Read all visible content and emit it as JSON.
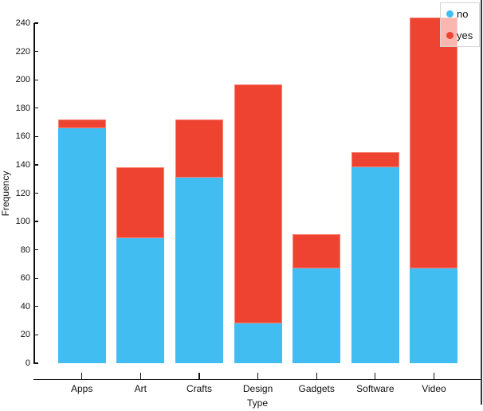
{
  "figure": {
    "background": "#ffffff",
    "text_color": "#111111",
    "window_right_border_color": "#3a3a3a"
  },
  "chart_data": {
    "type": "bar",
    "stacked": true,
    "title": "",
    "xlabel": "Type",
    "ylabel": "Frequency",
    "categories": [
      "Apps",
      "Art",
      "Crafts",
      "Design",
      "Gadgets",
      "Software",
      "Video"
    ],
    "series": [
      {
        "name": "no",
        "color": "#42BDF2",
        "values": [
          166,
          88,
          131,
          28,
          67,
          138,
          67
        ]
      },
      {
        "name": "yes",
        "color": "#EE4331",
        "values": [
          6,
          50,
          41,
          169,
          24,
          11,
          177
        ]
      }
    ],
    "ylim": [
      0,
      240
    ],
    "ytick_step": 20,
    "grid": false,
    "legend_position": "top-right",
    "legend_background": "rgba(255,255,255,0.62)"
  }
}
